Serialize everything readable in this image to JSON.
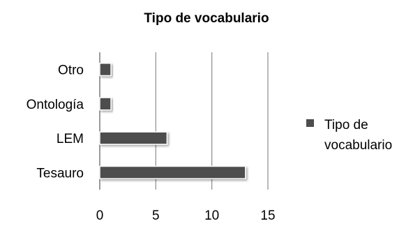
{
  "chart_data": {
    "type": "bar",
    "orientation": "horizontal",
    "title": "Tipo de vocabulario",
    "categories": [
      "Tesauro",
      "LEM",
      "Ontología",
      "Otro"
    ],
    "series": [
      {
        "name": "Tipo de vocabulario",
        "values": [
          13,
          6,
          1,
          1
        ],
        "color": "#4d4d4d"
      }
    ],
    "xlim": [
      0,
      15
    ],
    "x_ticks": [
      "0",
      "5",
      "10",
      "15"
    ],
    "grid": "vertical",
    "legend": {
      "position": "right",
      "lines": [
        "Tipo de",
        "vocabulario"
      ]
    }
  }
}
